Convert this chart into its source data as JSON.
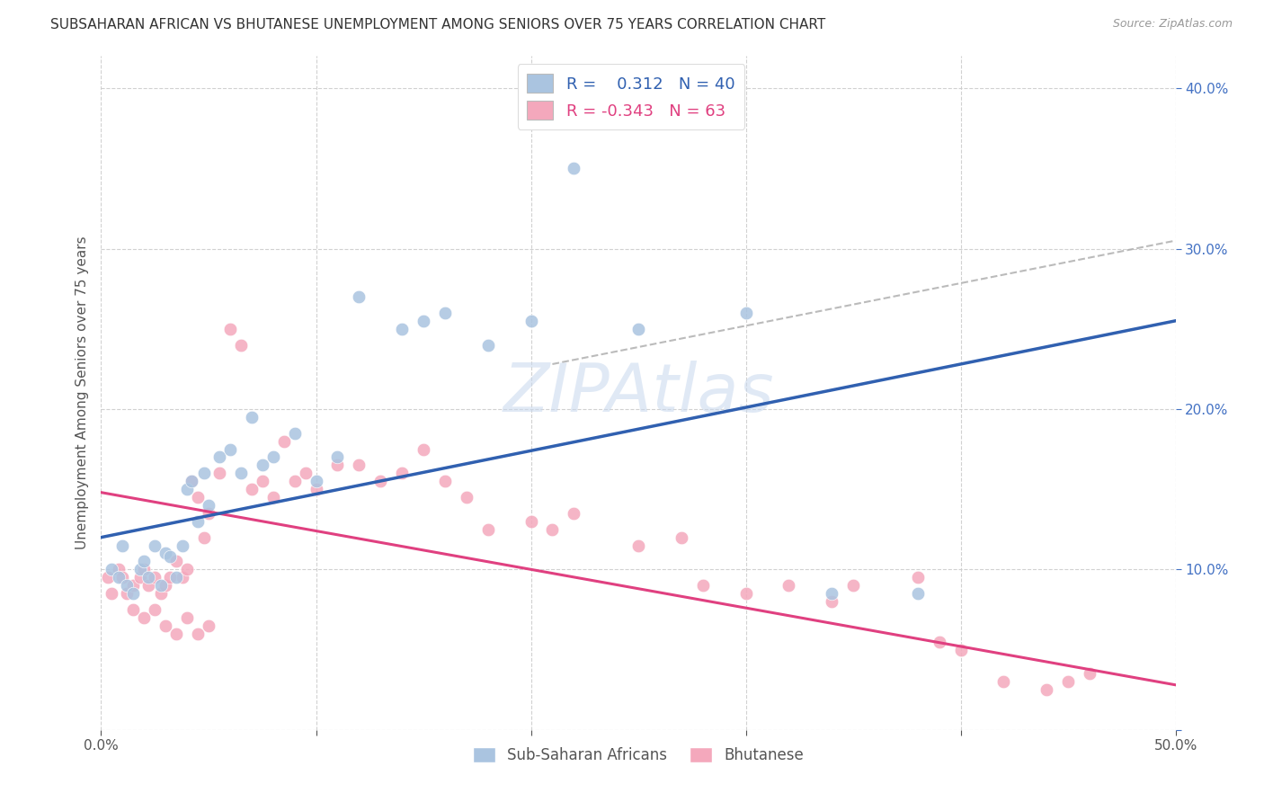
{
  "title": "SUBSAHARAN AFRICAN VS BHUTANESE UNEMPLOYMENT AMONG SENIORS OVER 75 YEARS CORRELATION CHART",
  "source": "Source: ZipAtlas.com",
  "ylabel": "Unemployment Among Seniors over 75 years",
  "xlim": [
    0.0,
    0.5
  ],
  "ylim": [
    0.0,
    0.42
  ],
  "xticks": [
    0.0,
    0.1,
    0.2,
    0.3,
    0.4,
    0.5
  ],
  "yticks": [
    0.0,
    0.1,
    0.2,
    0.3,
    0.4
  ],
  "xtick_labels": [
    "0.0%",
    "",
    "",
    "",
    "",
    "50.0%"
  ],
  "ytick_labels_right": [
    "",
    "10.0%",
    "20.0%",
    "30.0%",
    "40.0%"
  ],
  "r_blue": 0.312,
  "n_blue": 40,
  "r_pink": -0.343,
  "n_pink": 63,
  "blue_color": "#aac4e0",
  "pink_color": "#f4a8bc",
  "line_blue_color": "#3060b0",
  "line_pink_color": "#e04080",
  "dashed_line_color": "#aaaaaa",
  "watermark": "ZIPAtlas",
  "blue_x": [
    0.005,
    0.008,
    0.01,
    0.012,
    0.015,
    0.018,
    0.02,
    0.022,
    0.025,
    0.028,
    0.03,
    0.032,
    0.035,
    0.038,
    0.04,
    0.042,
    0.045,
    0.048,
    0.05,
    0.055,
    0.06,
    0.065,
    0.07,
    0.075,
    0.08,
    0.09,
    0.1,
    0.11,
    0.12,
    0.14,
    0.15,
    0.16,
    0.18,
    0.2,
    0.21,
    0.22,
    0.25,
    0.3,
    0.34,
    0.38
  ],
  "blue_y": [
    0.1,
    0.095,
    0.115,
    0.09,
    0.085,
    0.1,
    0.105,
    0.095,
    0.115,
    0.09,
    0.11,
    0.108,
    0.095,
    0.115,
    0.15,
    0.155,
    0.13,
    0.16,
    0.14,
    0.17,
    0.175,
    0.16,
    0.195,
    0.165,
    0.17,
    0.185,
    0.155,
    0.17,
    0.27,
    0.25,
    0.255,
    0.26,
    0.24,
    0.255,
    0.39,
    0.35,
    0.25,
    0.26,
    0.085,
    0.085
  ],
  "pink_x": [
    0.003,
    0.005,
    0.008,
    0.01,
    0.012,
    0.015,
    0.018,
    0.02,
    0.022,
    0.025,
    0.028,
    0.03,
    0.032,
    0.035,
    0.038,
    0.04,
    0.042,
    0.045,
    0.048,
    0.05,
    0.055,
    0.06,
    0.065,
    0.07,
    0.075,
    0.08,
    0.085,
    0.09,
    0.095,
    0.1,
    0.11,
    0.12,
    0.13,
    0.14,
    0.15,
    0.16,
    0.17,
    0.18,
    0.2,
    0.21,
    0.22,
    0.25,
    0.27,
    0.28,
    0.3,
    0.32,
    0.34,
    0.35,
    0.38,
    0.39,
    0.4,
    0.42,
    0.44,
    0.45,
    0.46,
    0.015,
    0.02,
    0.025,
    0.03,
    0.035,
    0.04,
    0.045,
    0.05
  ],
  "pink_y": [
    0.095,
    0.085,
    0.1,
    0.095,
    0.085,
    0.09,
    0.095,
    0.1,
    0.09,
    0.095,
    0.085,
    0.09,
    0.095,
    0.105,
    0.095,
    0.1,
    0.155,
    0.145,
    0.12,
    0.135,
    0.16,
    0.25,
    0.24,
    0.15,
    0.155,
    0.145,
    0.18,
    0.155,
    0.16,
    0.15,
    0.165,
    0.165,
    0.155,
    0.16,
    0.175,
    0.155,
    0.145,
    0.125,
    0.13,
    0.125,
    0.135,
    0.115,
    0.12,
    0.09,
    0.085,
    0.09,
    0.08,
    0.09,
    0.095,
    0.055,
    0.05,
    0.03,
    0.025,
    0.03,
    0.035,
    0.075,
    0.07,
    0.075,
    0.065,
    0.06,
    0.07,
    0.06,
    0.065
  ],
  "blue_line_x": [
    0.0,
    0.5
  ],
  "blue_line_y": [
    0.12,
    0.255
  ],
  "pink_line_x": [
    0.0,
    0.5
  ],
  "pink_line_y": [
    0.148,
    0.028
  ],
  "dash_line_x": [
    0.21,
    0.5
  ],
  "dash_line_y": [
    0.228,
    0.305
  ]
}
